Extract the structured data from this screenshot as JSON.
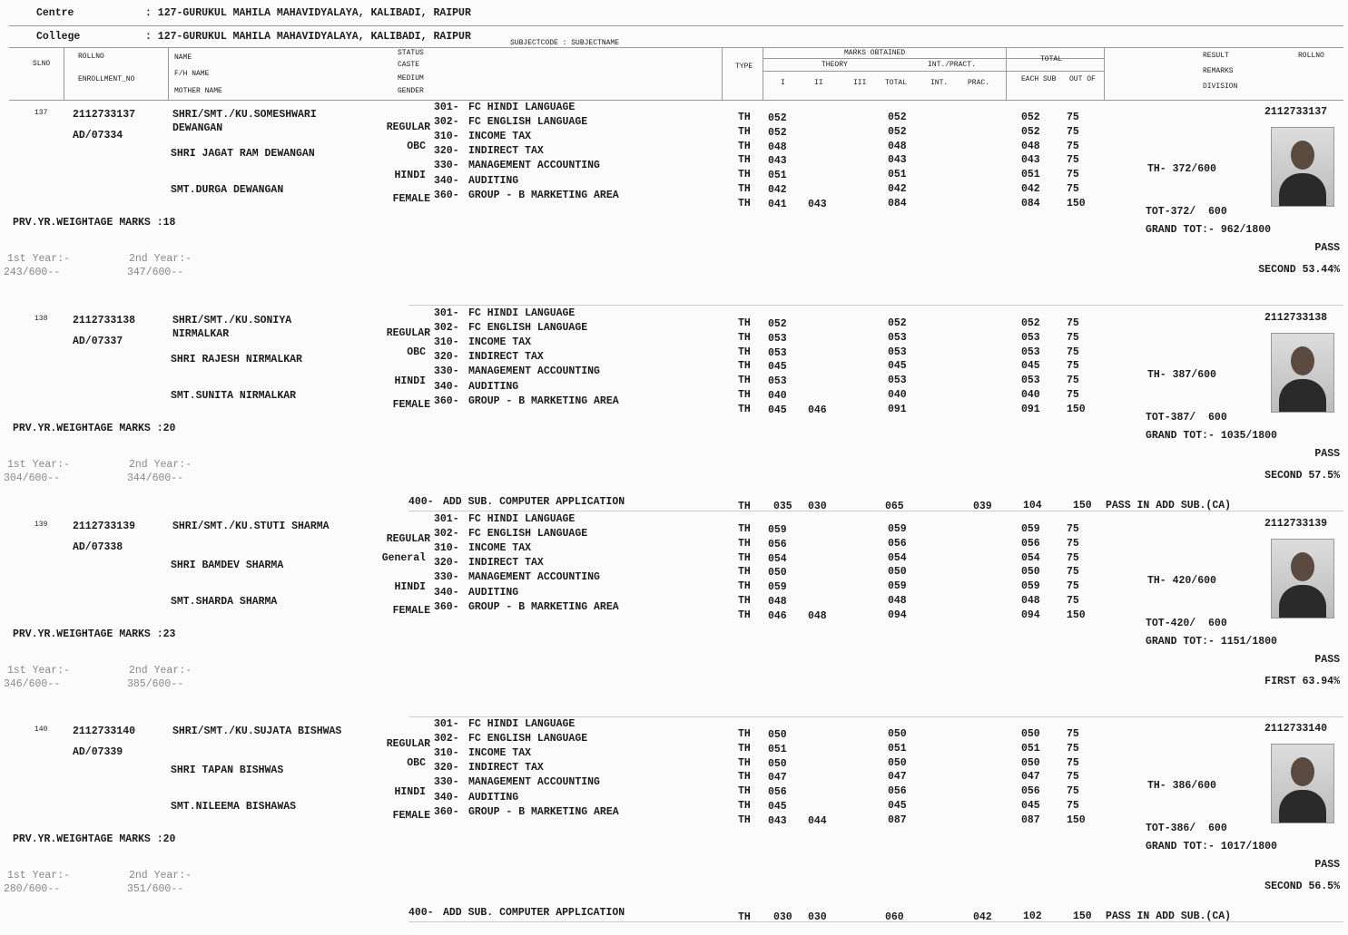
{
  "header": {
    "centre_label": "Centre",
    "centre": ": 127-GURUKUL MAHILA MAHAVIDYALAYA, KALIBADI, RAIPUR",
    "college_label": "College",
    "college": ": 127-GURUKUL MAHILA MAHAVIDYALAYA, KALIBADI, RAIPUR"
  },
  "columns": {
    "slno": "SLNO",
    "rollno": "ROLLNO",
    "enrollment": "ENROLLMENT_NO",
    "name": "NAME",
    "father": "F/H NAME",
    "mother": "MOTHER NAME",
    "status": "STATUS",
    "caste": "CASTE",
    "medium": "MEDIUM",
    "gender": "GENDER",
    "subject": "SUBJECTCODE : SUBJECTNAME",
    "type": "TYPE",
    "marks_obtained": "MARKS OBTAINED",
    "theory": "THEORY",
    "int_pract": "INT./PRACT.",
    "th1": "I",
    "th2": "II",
    "th3": "III",
    "th_total": "TOTAL",
    "int": "INT.",
    "prac": "PRAC.",
    "total": "TOTAL",
    "each_sub": "EACH SUB",
    "out_of": "OUT OF",
    "result": "RESULT",
    "remarks": "REMARKS",
    "division": "DIVISION",
    "rollno_right": "ROLLNO"
  },
  "students": [
    {
      "slno": "137",
      "rollno": "2112733137",
      "enrollment": "AD/07334",
      "name": "SHRI/SMT./KU.SOMESHWARI",
      "name_cont": "DEWANGAN",
      "father": "SHRI JAGAT RAM DEWANGAN",
      "mother": "SMT.DURGA DEWANGAN",
      "status": "REGULAR",
      "caste": "OBC",
      "medium": "HINDI",
      "gender": "FEMALE",
      "subjects": [
        {
          "code": "301-",
          "name": "FC HINDI LANGUAGE",
          "type": "TH",
          "th1": "052",
          "total": "052",
          "each": "052",
          "out_of": "75"
        },
        {
          "code": "302-",
          "name": "FC ENGLISH LANGUAGE",
          "type": "TH",
          "th1": "052",
          "total": "052",
          "each": "052",
          "out_of": "75"
        },
        {
          "code": "310-",
          "name": "INCOME TAX",
          "type": "TH",
          "th1": "048",
          "total": "048",
          "each": "048",
          "out_of": "75"
        },
        {
          "code": "320-",
          "name": "INDIRECT TAX",
          "type": "TH",
          "th1": "043",
          "total": "043",
          "each": "043",
          "out_of": "75"
        },
        {
          "code": "330-",
          "name": "MANAGEMENT ACCOUNTING",
          "type": "TH",
          "th1": "051",
          "total": "051",
          "each": "051",
          "out_of": "75"
        },
        {
          "code": "340-",
          "name": "AUDITING",
          "type": "TH",
          "th1": "042",
          "total": "042",
          "each": "042",
          "out_of": "75"
        },
        {
          "code": "360-",
          "name": "GROUP - B MARKETING AREA",
          "type": "TH",
          "th1": "041",
          "th2": "043",
          "total": "084",
          "each": "084",
          "out_of": "150"
        }
      ],
      "weightage": "PRV.YR.WEIGHTAGE MARKS :18",
      "year1_label": "1st Year:-",
      "year1": "243/600--",
      "year2_label": "2nd Year:-",
      "year2": "347/600--",
      "rollno_right": "2112733137",
      "th_total": "TH- 372/600",
      "tot": "TOT-372/  600",
      "grand_total": "GRAND TOT:- 962/1800",
      "result": "PASS",
      "division": "SECOND 53.44%"
    },
    {
      "slno": "138",
      "rollno": "2112733138",
      "enrollment": "AD/07337",
      "name": "SHRI/SMT./KU.SONIYA",
      "name_cont": "NIRMALKAR",
      "father": "SHRI RAJESH NIRMALKAR",
      "mother": "SMT.SUNITA NIRMALKAR",
      "status": "REGULAR",
      "caste": "OBC",
      "medium": "HINDI",
      "gender": "FEMALE",
      "subjects": [
        {
          "code": "301-",
          "name": "FC HINDI LANGUAGE",
          "type": "TH",
          "th1": "052",
          "total": "052",
          "each": "052",
          "out_of": "75"
        },
        {
          "code": "302-",
          "name": "FC ENGLISH LANGUAGE",
          "type": "TH",
          "th1": "053",
          "total": "053",
          "each": "053",
          "out_of": "75"
        },
        {
          "code": "310-",
          "name": "INCOME TAX",
          "type": "TH",
          "th1": "053",
          "total": "053",
          "each": "053",
          "out_of": "75"
        },
        {
          "code": "320-",
          "name": "INDIRECT TAX",
          "type": "TH",
          "th1": "045",
          "total": "045",
          "each": "045",
          "out_of": "75"
        },
        {
          "code": "330-",
          "name": "MANAGEMENT ACCOUNTING",
          "type": "TH",
          "th1": "053",
          "total": "053",
          "each": "053",
          "out_of": "75"
        },
        {
          "code": "340-",
          "name": "AUDITING",
          "type": "TH",
          "th1": "040",
          "total": "040",
          "each": "040",
          "out_of": "75"
        },
        {
          "code": "360-",
          "name": "GROUP - B MARKETING AREA",
          "type": "TH",
          "th1": "045",
          "th2": "046",
          "total": "091",
          "each": "091",
          "out_of": "150"
        }
      ],
      "weightage": "PRV.YR.WEIGHTAGE MARKS :20",
      "year1_label": "1st Year:-",
      "year1": "304/600--",
      "year2_label": "2nd Year:-",
      "year2": "344/600--",
      "rollno_right": "2112733138",
      "th_total": "TH- 387/600",
      "tot": "TOT-387/  600",
      "grand_total": "GRAND TOT:- 1035/1800",
      "result": "PASS",
      "division": "SECOND 57.5%",
      "add_sub": {
        "code": "400-",
        "name": "ADD SUB. COMPUTER APPLICATION",
        "type": "TH",
        "th1": "035",
        "th2": "030",
        "total": "065",
        "int": "039",
        "each": "104",
        "out_of": "150",
        "remark": "PASS IN ADD SUB.(CA)"
      }
    },
    {
      "slno": "139",
      "rollno": "2112733139",
      "enrollment": "AD/07338",
      "name": "SHRI/SMT./KU.STUTI SHARMA",
      "father": "SHRI BAMDEV SHARMA",
      "mother": "SMT.SHARDA SHARMA",
      "status": "REGULAR",
      "caste": "General",
      "medium": "HINDI",
      "gender": "FEMALE",
      "subjects": [
        {
          "code": "301-",
          "name": "FC HINDI LANGUAGE",
          "type": "TH",
          "th1": "059",
          "total": "059",
          "each": "059",
          "out_of": "75"
        },
        {
          "code": "302-",
          "name": "FC ENGLISH LANGUAGE",
          "type": "TH",
          "th1": "056",
          "total": "056",
          "each": "056",
          "out_of": "75"
        },
        {
          "code": "310-",
          "name": "INCOME TAX",
          "type": "TH",
          "th1": "054",
          "total": "054",
          "each": "054",
          "out_of": "75"
        },
        {
          "code": "320-",
          "name": "INDIRECT TAX",
          "type": "TH",
          "th1": "050",
          "total": "050",
          "each": "050",
          "out_of": "75"
        },
        {
          "code": "330-",
          "name": "MANAGEMENT ACCOUNTING",
          "type": "TH",
          "th1": "059",
          "total": "059",
          "each": "059",
          "out_of": "75"
        },
        {
          "code": "340-",
          "name": "AUDITING",
          "type": "TH",
          "th1": "048",
          "total": "048",
          "each": "048",
          "out_of": "75"
        },
        {
          "code": "360-",
          "name": "GROUP - B MARKETING AREA",
          "type": "TH",
          "th1": "046",
          "th2": "048",
          "total": "094",
          "each": "094",
          "out_of": "150"
        }
      ],
      "weightage": "PRV.YR.WEIGHTAGE MARKS :23",
      "year1_label": "1st Year:-",
      "year1": "346/600--",
      "year2_label": "2nd Year:-",
      "year2": "385/600--",
      "rollno_right": "2112733139",
      "th_total": "TH- 420/600",
      "tot": "TOT-420/  600",
      "grand_total": "GRAND TOT:- 1151/1800",
      "result": "PASS",
      "division": "FIRST 63.94%"
    },
    {
      "slno": "140",
      "rollno": "2112733140",
      "enrollment": "AD/07339",
      "name": "SHRI/SMT./KU.SUJATA BISHWAS",
      "father": "SHRI TAPAN BISHWAS",
      "mother": "SMT.NILEEMA BISHAWAS",
      "status": "REGULAR",
      "caste": "OBC",
      "medium": "HINDI",
      "gender": "FEMALE",
      "subjects": [
        {
          "code": "301-",
          "name": "FC HINDI LANGUAGE",
          "type": "TH",
          "th1": "050",
          "total": "050",
          "each": "050",
          "out_of": "75"
        },
        {
          "code": "302-",
          "name": "FC ENGLISH LANGUAGE",
          "type": "TH",
          "th1": "051",
          "total": "051",
          "each": "051",
          "out_of": "75"
        },
        {
          "code": "310-",
          "name": "INCOME TAX",
          "type": "TH",
          "th1": "050",
          "total": "050",
          "each": "050",
          "out_of": "75"
        },
        {
          "code": "320-",
          "name": "INDIRECT TAX",
          "type": "TH",
          "th1": "047",
          "total": "047",
          "each": "047",
          "out_of": "75"
        },
        {
          "code": "330-",
          "name": "MANAGEMENT ACCOUNTING",
          "type": "TH",
          "th1": "056",
          "total": "056",
          "each": "056",
          "out_of": "75"
        },
        {
          "code": "340-",
          "name": "AUDITING",
          "type": "TH",
          "th1": "045",
          "total": "045",
          "each": "045",
          "out_of": "75"
        },
        {
          "code": "360-",
          "name": "GROUP - B MARKETING AREA",
          "type": "TH",
          "th1": "043",
          "th2": "044",
          "total": "087",
          "each": "087",
          "out_of": "150"
        }
      ],
      "weightage": "PRV.YR.WEIGHTAGE MARKS :20",
      "year1_label": "1st Year:-",
      "year1": "280/600--",
      "year2_label": "2nd Year:-",
      "year2": "351/600--",
      "rollno_right": "2112733140",
      "th_total": "TH- 386/600",
      "tot": "TOT-386/  600",
      "grand_total": "GRAND TOT:- 1017/1800",
      "result": "PASS",
      "division": "SECOND 56.5%",
      "add_sub": {
        "code": "400-",
        "name": "ADD SUB. COMPUTER APPLICATION",
        "type": "TH",
        "th1": "030",
        "th2": "030",
        "total": "060",
        "int": "042",
        "each": "102",
        "out_of": "150",
        "remark": "PASS IN ADD SUB.(CA)"
      }
    }
  ]
}
